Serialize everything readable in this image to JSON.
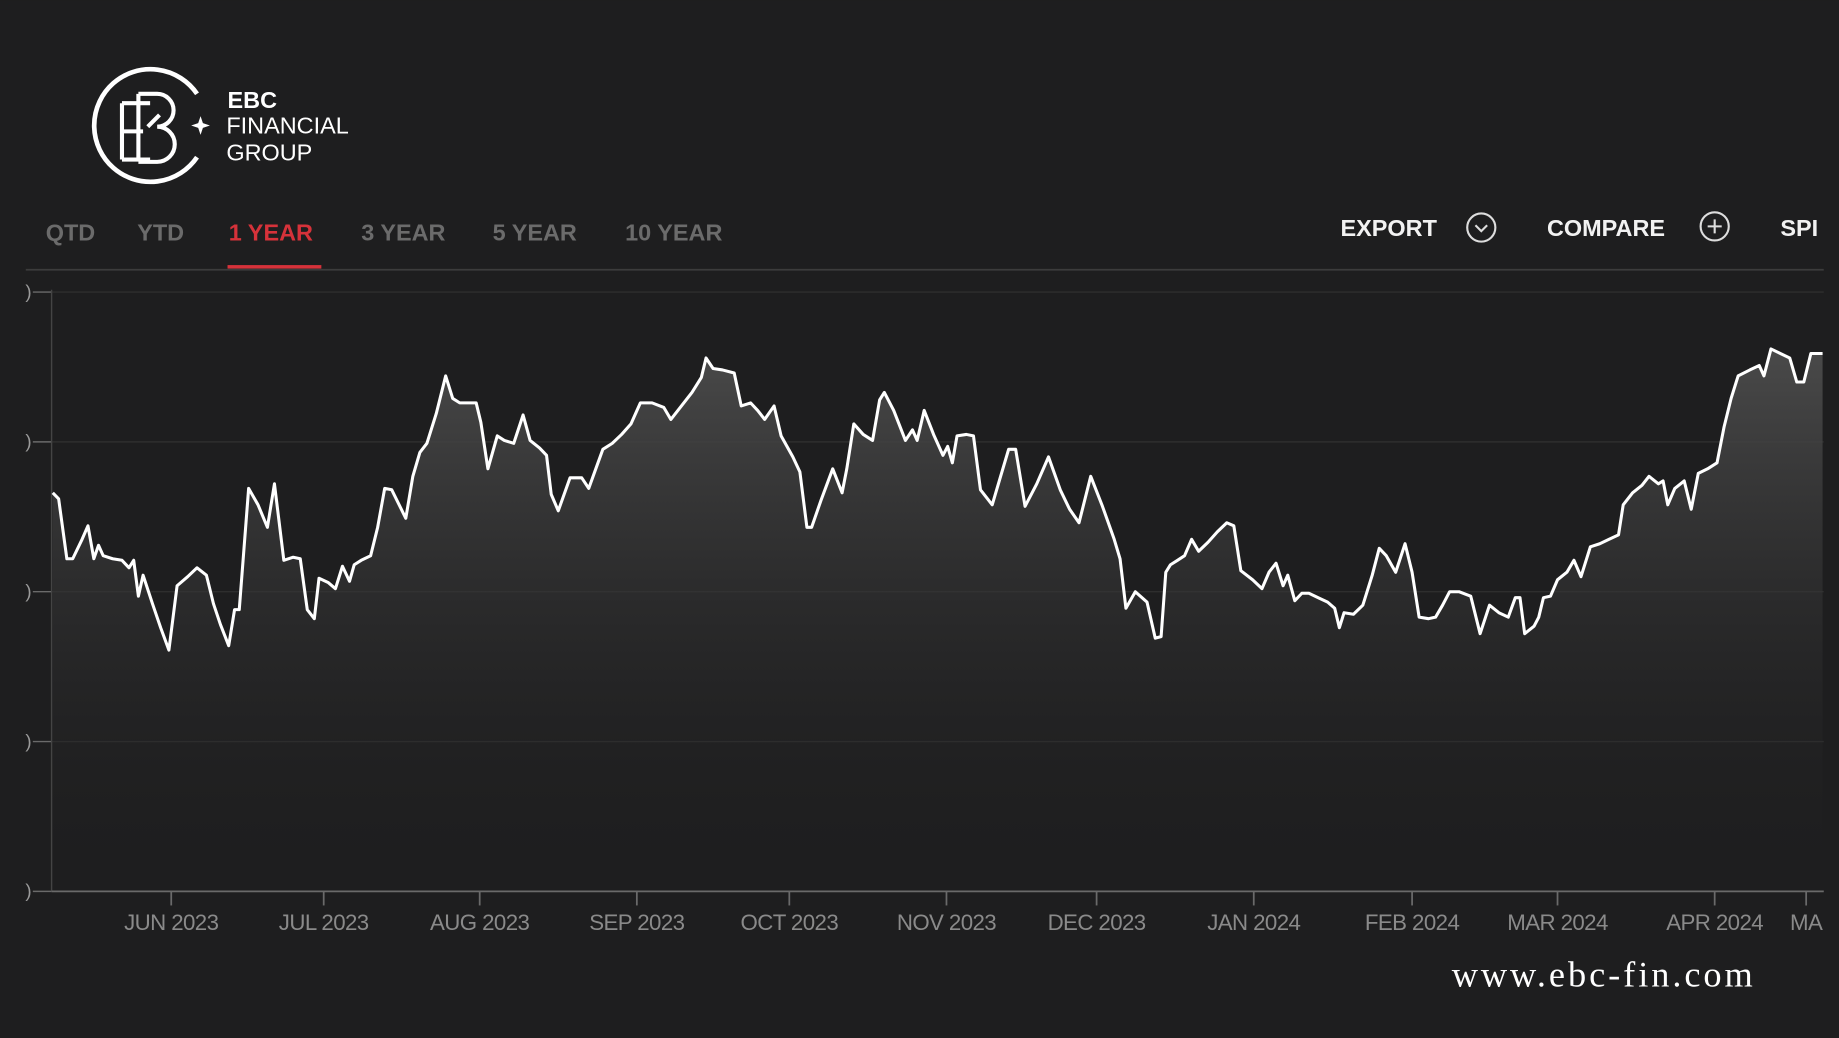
{
  "header": {
    "brand": "EBC",
    "line2": "FINANCIAL",
    "line3": "GROUP"
  },
  "tabs": [
    "QTD",
    "YTD",
    "1 YEAR",
    "3 YEAR",
    "5 YEAR",
    "10 YEAR"
  ],
  "toolbar": [
    "EXPORT",
    "COMPARE",
    "SPI"
  ],
  "footer": "www.ebc-fin.com",
  "chart_data": {
    "type": "line",
    "color": "#ffffff",
    "grid": true,
    "x": [
      0.2,
      1.2,
      2.6,
      3.6,
      5.2,
      6.2,
      7.2,
      8,
      8.8,
      10.4,
      12,
      13.2,
      14,
      14.8,
      15.6,
      17.2,
      18.6,
      20,
      21.4,
      23.2,
      24.8,
      26.4,
      27.6,
      28.8,
      30.2,
      31.2,
      32,
      33.6,
      35.2,
      36.8,
      38,
      39.6,
      41.2,
      42.4,
      43.6,
      44.8,
      45.6,
      47.2,
      48.4,
      49.6,
      50.8,
      51.6,
      52.8,
      54.4,
      55.6,
      56.8,
      58,
      60.4,
      61.6,
      62.8,
      64,
      65.6,
      67.2,
      68.4,
      69.6,
      71.2,
      72.4,
      73.2,
      74.4,
      76,
      77.2,
      78.8,
      80.4,
      81.6,
      83.2,
      84.4,
      85.2,
      86.4,
      88.4,
      90.4,
      91.6,
      92.8,
      94,
      95.6,
      97.2,
      98.8,
      100.4,
      102.4,
      104.4,
      105.6,
      107.2,
      109.2,
      110.8,
      111.6,
      112.8,
      114.4,
      116.4,
      117.6,
      119.2,
      120.4,
      121.6,
      123.2,
      124.4,
      126.4,
      127.6,
      128.8,
      129.6,
      131.2,
      133.2,
      134.8,
      135.6,
      136.8,
      138.4,
      140,
      141.2,
      142,
      143.6,
      145.6,
      146.8,
      147.6,
      148.8,
      150.4,
      152,
      152.8,
      153.6,
      154.4,
      156,
      157.2,
      158.4,
      160.4,
      161.6,
      163.2,
      164.4,
      166,
      168,
      170,
      172,
      173.6,
      175.2,
      177.2,
      179.2,
      181.2,
      182.2,
      183.2,
      184.8,
      186.8,
      188.2,
      189.2,
      190,
      190.8,
      192,
      193.2,
      194.4,
      195.6,
      197.2,
      198.8,
      200.4,
      201.6,
      202.8,
      204.8,
      206.4,
      207.6,
      208.8,
      210,
      210.8,
      212,
      213.2,
      214.4,
      216,
      217.6,
      218.8,
      219.6,
      220.4,
      222,
      223.6,
      225.2,
      226.4,
      227.6,
      229.2,
      230.8,
      232,
      233.2,
      234.8,
      236,
      237.2,
      238.4,
      240,
      242,
      243.6,
      245.2,
      246.8,
      248.4,
      249.6,
      250.4,
      251.2,
      252.8,
      253.6,
      254.4,
      255.6,
      256.8,
      258.4,
      259.6,
      260.8,
      262.4,
      264,
      265.6,
      267.2,
      268,
      269.6,
      271.2,
      272.4,
      274,
      274.8,
      275.6,
      276.8,
      278.4,
      279.6,
      280.8,
      282.4,
      284,
      285.2,
      286.4,
      287.6,
      289.6,
      291.2,
      292,
      293.2,
      294.8,
      296.4,
      297.6,
      298.8,
      300,
      302
    ],
    "values": [
      2.66,
      2.62,
      2.22,
      2.22,
      2.35,
      2.44,
      2.22,
      2.31,
      2.24,
      2.22,
      2.21,
      2.16,
      2.21,
      1.97,
      2.11,
      1.92,
      1.76,
      1.61,
      2.04,
      2.1,
      2.16,
      2.11,
      1.92,
      1.78,
      1.64,
      1.88,
      1.88,
      2.69,
      2.58,
      2.43,
      2.72,
      2.21,
      2.23,
      2.22,
      1.88,
      1.82,
      2.09,
      2.06,
      2.02,
      2.17,
      2.07,
      2.18,
      2.21,
      2.24,
      2.43,
      2.69,
      2.68,
      2.49,
      2.77,
      2.93,
      2.99,
      3.19,
      3.44,
      3.29,
      3.26,
      3.26,
      3.26,
      3.13,
      2.82,
      3.04,
      3.01,
      2.99,
      3.18,
      3.01,
      2.96,
      2.91,
      2.65,
      2.54,
      2.76,
      2.76,
      2.69,
      2.82,
      2.95,
      2.99,
      3.05,
      3.12,
      3.26,
      3.26,
      3.23,
      3.15,
      3.23,
      3.33,
      3.43,
      3.56,
      3.49,
      3.48,
      3.46,
      3.24,
      3.26,
      3.21,
      3.15,
      3.24,
      3.04,
      2.9,
      2.8,
      2.43,
      2.43,
      2.61,
      2.82,
      2.66,
      2.82,
      3.12,
      3.05,
      3.01,
      3.28,
      3.33,
      3.21,
      3.01,
      3.08,
      3.01,
      3.21,
      3.05,
      2.91,
      2.97,
      2.86,
      3.04,
      3.05,
      3.04,
      2.68,
      2.58,
      2.74,
      2.95,
      2.95,
      2.57,
      2.72,
      2.9,
      2.68,
      2.55,
      2.46,
      2.77,
      2.57,
      2.35,
      2.22,
      1.89,
      2,
      1.93,
      1.69,
      1.7,
      2.13,
      2.18,
      2.21,
      2.24,
      2.35,
      2.27,
      2.33,
      2.4,
      2.46,
      2.44,
      2.14,
      2.08,
      2.02,
      2.13,
      2.19,
      2.04,
      2.11,
      1.94,
      1.99,
      1.99,
      1.96,
      1.93,
      1.89,
      1.76,
      1.86,
      1.85,
      1.91,
      2.11,
      2.29,
      2.24,
      2.13,
      2.32,
      2.13,
      1.83,
      1.82,
      1.83,
      1.91,
      2,
      2,
      1.97,
      1.72,
      1.91,
      1.86,
      1.83,
      1.96,
      1.96,
      1.72,
      1.77,
      1.83,
      1.96,
      1.97,
      2.08,
      2.13,
      2.21,
      2.1,
      2.3,
      2.32,
      2.35,
      2.38,
      2.58,
      2.66,
      2.71,
      2.77,
      2.72,
      2.74,
      2.58,
      2.69,
      2.74,
      2.55,
      2.79,
      2.82,
      2.86,
      3.1,
      3.29,
      3.44,
      3.48,
      3.51,
      3.44,
      3.62,
      3.59,
      3.56,
      3.4,
      3.4,
      3.59,
      3.59
    ],
    "xlim": [
      0,
      302.2
    ],
    "xticks": [
      {
        "value": 20.4,
        "label": "JUN 2023"
      },
      {
        "value": 46.4,
        "label": "JUL 2023"
      },
      {
        "value": 73,
        "label": "AUG 2023"
      },
      {
        "value": 99.8,
        "label": "SEP 2023"
      },
      {
        "value": 125.8,
        "label": "OCT 2023"
      },
      {
        "value": 152.6,
        "label": "NOV 2023"
      },
      {
        "value": 178.2,
        "label": "DEC 2023"
      },
      {
        "value": 205,
        "label": "JAN 2024"
      },
      {
        "value": 232,
        "label": "FEB 2024"
      },
      {
        "value": 256.8,
        "label": "MAR 2024"
      },
      {
        "value": 283.6,
        "label": "APR 2024"
      },
      {
        "value": 299.2,
        "label": "MA"
      }
    ],
    "ylim": [
      0,
      4
    ],
    "yticks": [
      {
        "value": 0,
        "label": ")"
      },
      {
        "value": 1,
        "label": ")"
      },
      {
        "value": 2,
        "label": ")"
      },
      {
        "value": 3,
        "label": ")"
      },
      {
        "value": 4,
        "label": ")"
      }
    ]
  }
}
